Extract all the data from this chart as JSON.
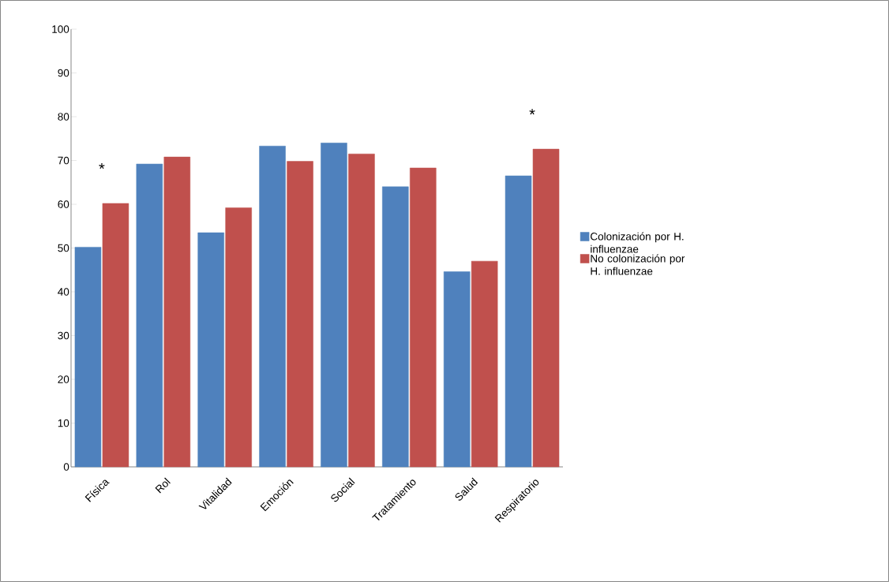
{
  "chart_data": {
    "type": "bar",
    "categories": [
      "Física",
      "Rol",
      "Vitalidad",
      "Emoción",
      "Social",
      "Tratamiento",
      "Salud",
      "Respiratorio"
    ],
    "series": [
      {
        "name": "Colonización por H. influenzae",
        "color": "#4f81bd",
        "values": [
          50.2,
          69.2,
          53.5,
          73.3,
          74.0,
          64.0,
          44.6,
          66.5
        ]
      },
      {
        "name": "No colonización por H. influenzae",
        "color": "#c0504d",
        "values": [
          60.2,
          70.8,
          59.2,
          69.8,
          71.5,
          68.3,
          47.0,
          72.6
        ]
      }
    ],
    "ylim": [
      0,
      100
    ],
    "yticks": [
      0,
      10,
      20,
      30,
      40,
      50,
      60,
      70,
      80,
      90,
      100
    ],
    "legend": "right",
    "annotations": [
      {
        "text": "*",
        "x": "Física",
        "y": 60.2
      },
      {
        "text": "*",
        "x": "Respiratorio",
        "y": 72.6
      }
    ]
  }
}
